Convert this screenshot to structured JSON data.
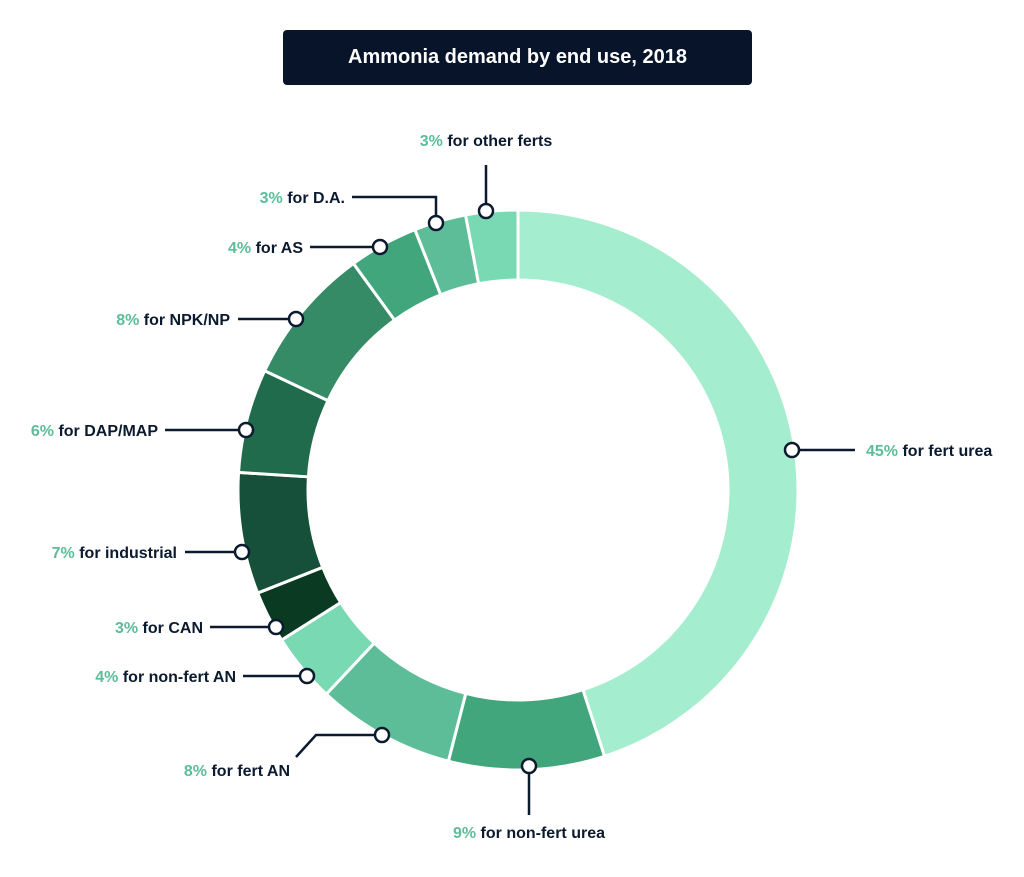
{
  "chart_data": {
    "type": "pie",
    "variant": "donut",
    "title": "Ammonia demand by end use, 2018",
    "unit": "%",
    "slices": [
      {
        "label": "for fert urea",
        "value": 45,
        "pct_text": "45%",
        "color": "#a5edcf"
      },
      {
        "label": "for non-fert urea",
        "value": 9,
        "pct_text": "9%",
        "color": "#42a67c"
      },
      {
        "label": "for fert AN",
        "value": 8,
        "pct_text": "8%",
        "color": "#5cbd98"
      },
      {
        "label": "for non-fert AN",
        "value": 4,
        "pct_text": "4%",
        "color": "#79d9b2"
      },
      {
        "label": "for CAN",
        "value": 3,
        "pct_text": "3%",
        "color": "#0b3a22"
      },
      {
        "label": "for industrial",
        "value": 7,
        "pct_text": "7%",
        "color": "#17503a"
      },
      {
        "label": "for DAP/MAP",
        "value": 6,
        "pct_text": "6%",
        "color": "#1f6b4c"
      },
      {
        "label": "for NPK/NP",
        "value": 8,
        "pct_text": "8%",
        "color": "#368b67"
      },
      {
        "label": "for AS",
        "value": 4,
        "pct_text": "4%",
        "color": "#42a67c"
      },
      {
        "label": "for D.A.",
        "value": 3,
        "pct_text": "3%",
        "color": "#5cbd98"
      },
      {
        "label": "for other ferts",
        "value": 3,
        "pct_text": "3%",
        "color": "#79d9b2"
      }
    ]
  }
}
